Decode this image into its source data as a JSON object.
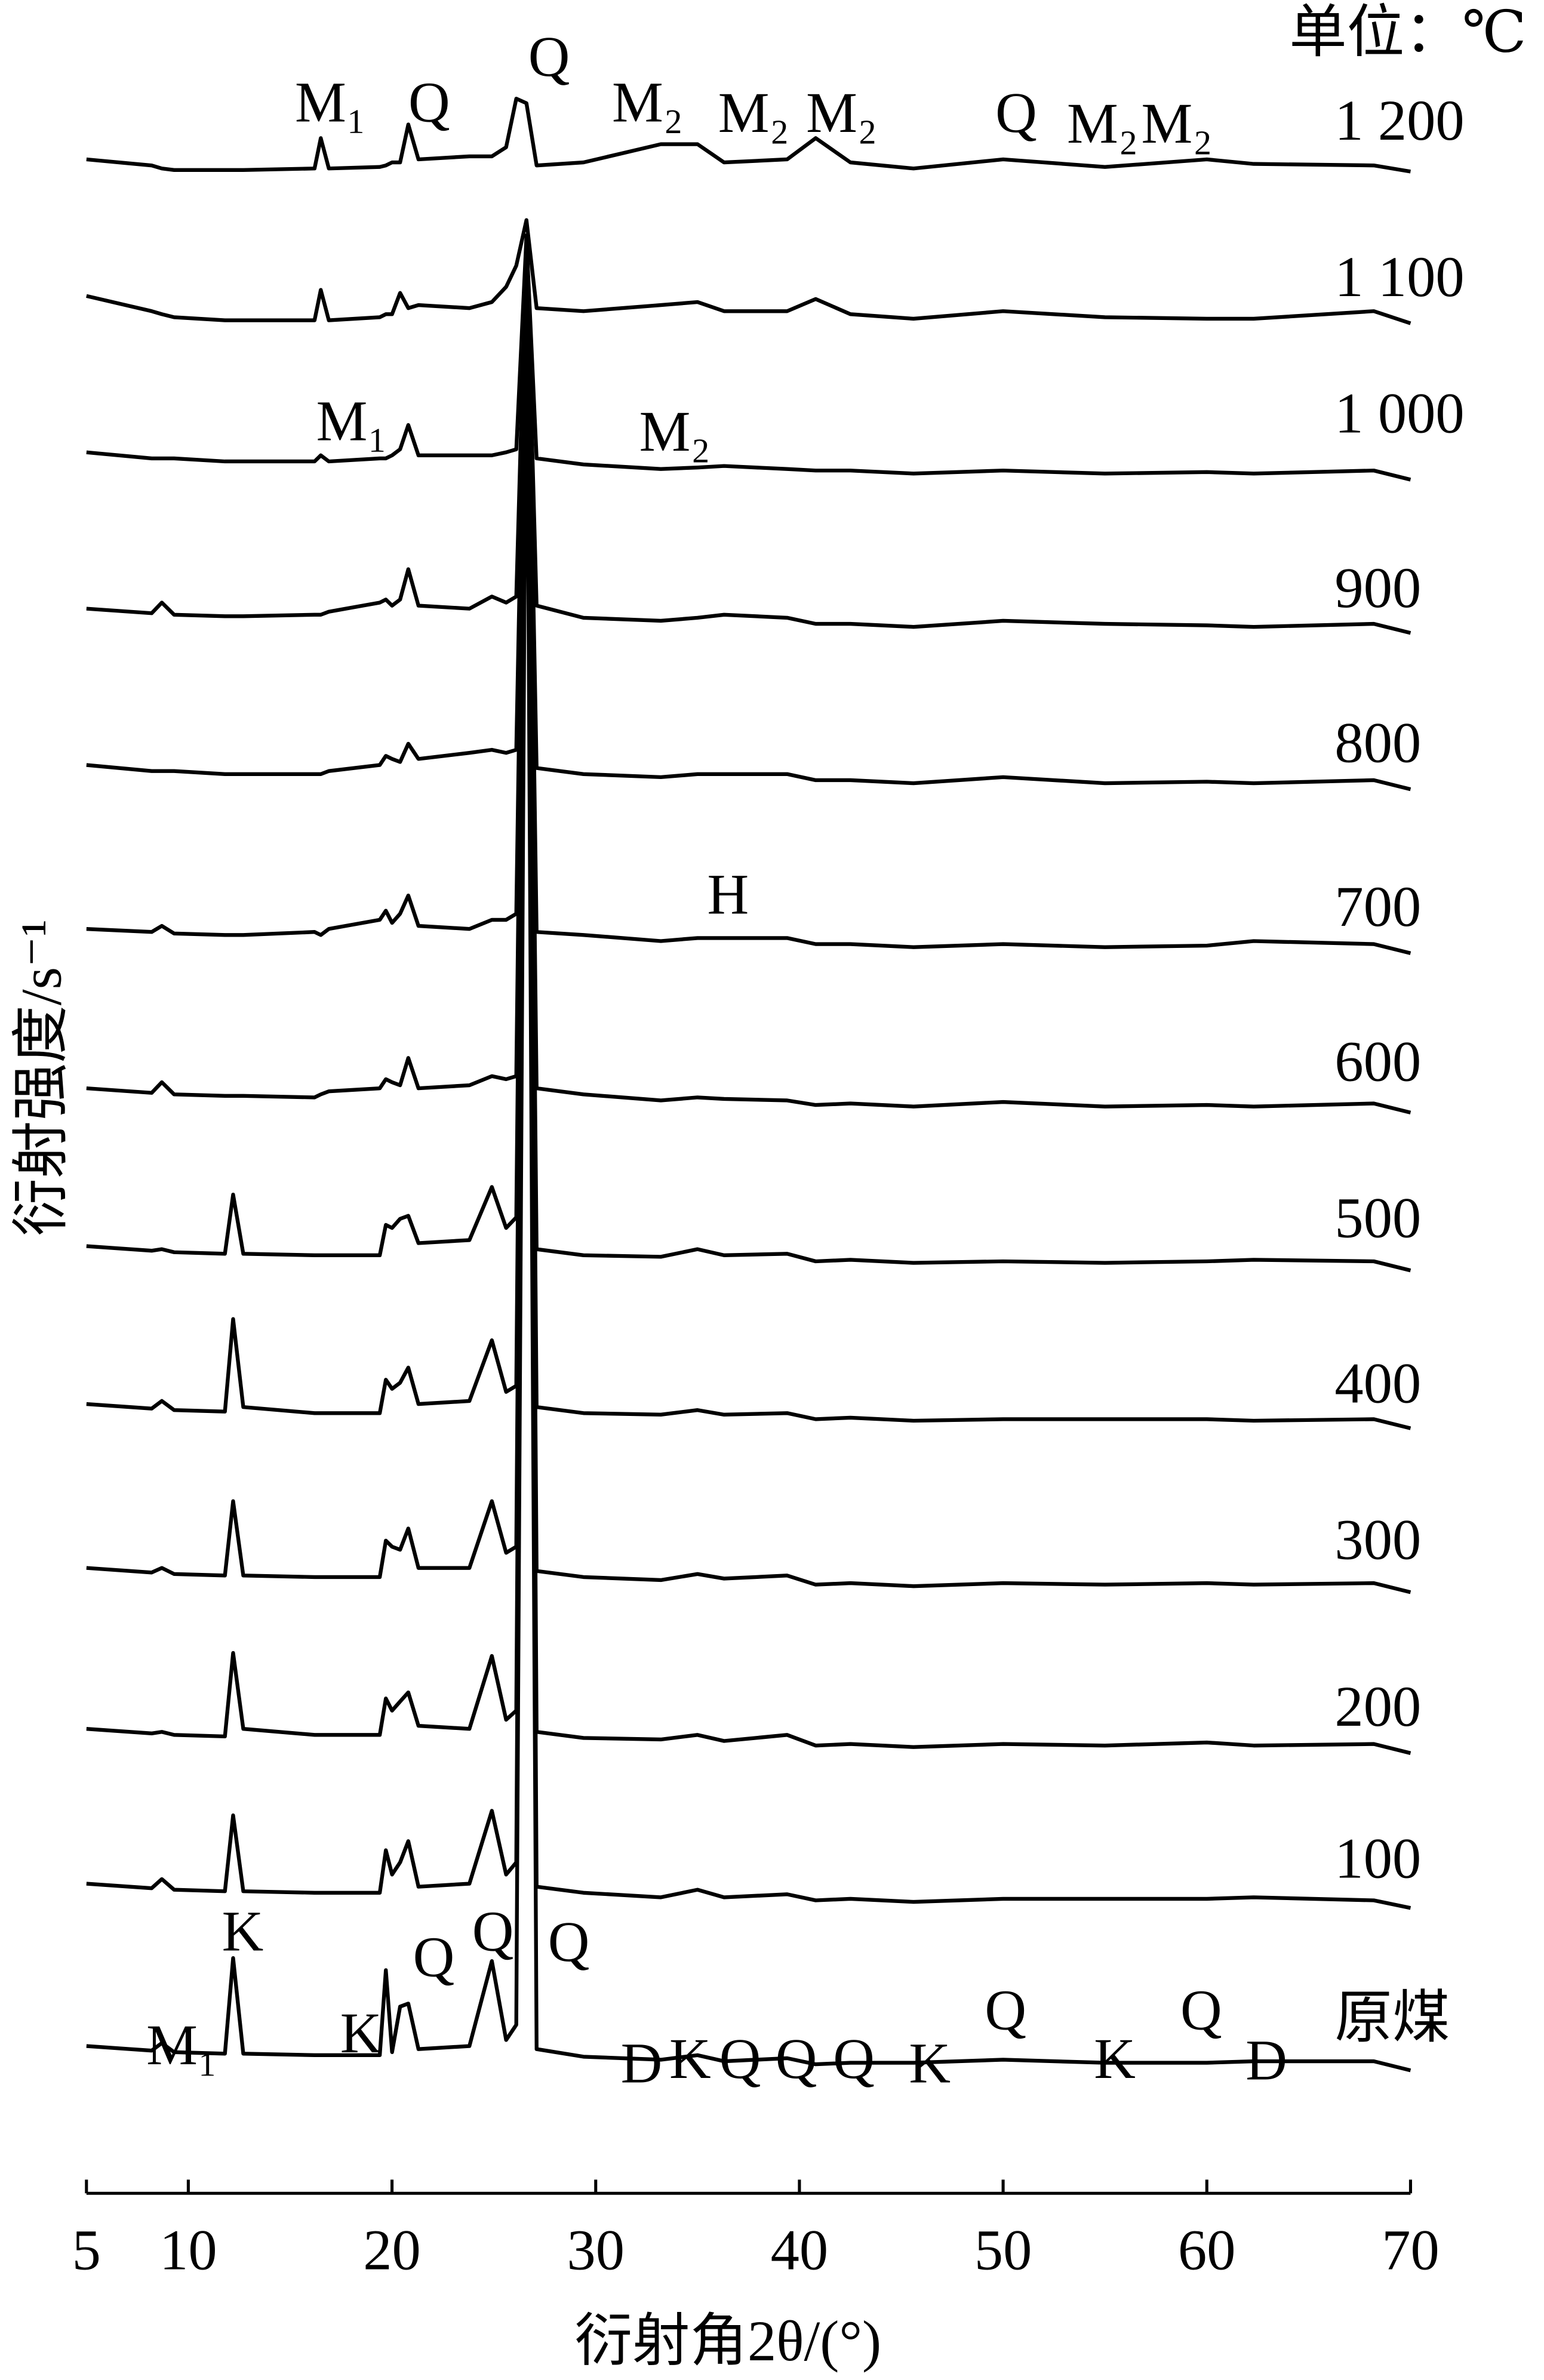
{
  "chart_data": {
    "type": "line",
    "unit_note": "单位：℃",
    "xlabel": "衍射角2θ/(°)",
    "ylabel": "衍射强度/s⁻¹",
    "color": "#000000",
    "xlim": [
      5,
      70
    ],
    "xticks": [
      5,
      10,
      20,
      30,
      40,
      50,
      60,
      70
    ],
    "x": [
      5,
      8.2,
      8.7,
      9.3,
      11.8,
      12.2,
      12.7,
      16.2,
      16.5,
      16.9,
      19.4,
      19.7,
      20.0,
      20.4,
      20.8,
      21.3,
      23.8,
      24.9,
      25.6,
      26.1,
      26.6,
      27.1,
      29.4,
      33.2,
      35.0,
      36.3,
      39.4,
      40.8,
      42.5,
      45.6,
      50.0,
      55.0,
      60.0,
      62.3,
      68.2,
      70
    ],
    "series": [
      {
        "name": "1 200",
        "values": [
          8,
          4,
          2,
          1,
          1,
          1,
          1,
          2,
          22,
          2,
          3,
          4,
          6,
          6,
          31,
          8,
          10,
          10,
          16,
          48,
          45,
          4,
          6,
          18,
          18,
          6,
          8,
          22,
          6,
          2,
          8,
          3,
          8,
          5,
          4,
          0
        ]
      },
      {
        "name": "1 100",
        "values": [
          18,
          8,
          6,
          4,
          2,
          2,
          2,
          2,
          22,
          2,
          4,
          6,
          6,
          20,
          10,
          12,
          10,
          14,
          24,
          38,
          68,
          10,
          8,
          12,
          14,
          8,
          8,
          16,
          6,
          3,
          8,
          4,
          3,
          3,
          8,
          0
        ]
      },
      {
        "name": "1 000",
        "values": [
          18,
          14,
          14,
          14,
          12,
          12,
          12,
          12,
          16,
          12,
          14,
          14,
          16,
          20,
          36,
          16,
          16,
          16,
          18,
          20,
          160,
          14,
          10,
          7,
          8,
          9,
          7,
          6,
          6,
          4,
          6,
          4,
          5,
          4,
          6,
          0
        ]
      },
      {
        "name": "900",
        "values": [
          16,
          13,
          20,
          12,
          11,
          11,
          11,
          12,
          12,
          14,
          20,
          22,
          18,
          22,
          42,
          18,
          16,
          24,
          20,
          24,
          260,
          18,
          10,
          8,
          10,
          12,
          10,
          6,
          6,
          4,
          8,
          6,
          5,
          4,
          6,
          0
        ]
      },
      {
        "name": "800",
        "values": [
          16,
          12,
          12,
          12,
          10,
          10,
          10,
          10,
          10,
          12,
          16,
          22,
          20,
          18,
          30,
          20,
          24,
          26,
          24,
          26,
          365,
          14,
          10,
          8,
          10,
          10,
          10,
          6,
          6,
          4,
          8,
          4,
          5,
          4,
          6,
          0
        ]
      },
      {
        "name": "700",
        "values": [
          16,
          14,
          18,
          13,
          12,
          12,
          12,
          14,
          12,
          16,
          22,
          28,
          20,
          26,
          38,
          18,
          16,
          22,
          22,
          26,
          470,
          14,
          12,
          8,
          10,
          10,
          10,
          6,
          6,
          4,
          6,
          4,
          5,
          8,
          6,
          0
        ]
      },
      {
        "name": "600",
        "values": [
          16,
          13,
          20,
          12,
          11,
          11,
          11,
          10,
          12,
          14,
          16,
          22,
          20,
          18,
          36,
          16,
          18,
          24,
          22,
          24,
          575,
          16,
          12,
          8,
          10,
          9,
          8,
          5,
          6,
          4,
          7,
          4,
          5,
          4,
          6,
          0
        ]
      },
      {
        "name": "500",
        "values": [
          16,
          13,
          14,
          12,
          11,
          50,
          11,
          10,
          10,
          10,
          10,
          30,
          28,
          34,
          36,
          18,
          20,
          55,
          28,
          35,
          680,
          14,
          10,
          9,
          14,
          10,
          11,
          6,
          7,
          5,
          6,
          5,
          6,
          7,
          6,
          0
        ]
      },
      {
        "name": "400",
        "values": [
          16,
          13,
          18,
          12,
          11,
          72,
          14,
          10,
          10,
          10,
          10,
          32,
          26,
          30,
          40,
          16,
          18,
          58,
          24,
          28,
          785,
          14,
          10,
          9,
          12,
          9,
          10,
          6,
          7,
          5,
          6,
          6,
          6,
          5,
          6,
          0
        ]
      },
      {
        "name": "300",
        "values": [
          16,
          13,
          16,
          12,
          11,
          60,
          11,
          10,
          10,
          10,
          10,
          34,
          30,
          28,
          42,
          16,
          16,
          60,
          26,
          30,
          890,
          14,
          10,
          8,
          12,
          9,
          11,
          5,
          6,
          4,
          6,
          5,
          6,
          5,
          6,
          0
        ]
      },
      {
        "name": "200",
        "values": [
          16,
          13,
          14,
          12,
          11,
          66,
          16,
          12,
          12,
          12,
          12,
          36,
          28,
          34,
          40,
          18,
          16,
          64,
          22,
          28,
          995,
          14,
          10,
          9,
          12,
          8,
          12,
          5,
          6,
          4,
          6,
          5,
          7,
          5,
          6,
          0
        ]
      },
      {
        "name": "100",
        "values": [
          16,
          13,
          19,
          12,
          11,
          61,
          11,
          10,
          10,
          10,
          10,
          38,
          22,
          30,
          44,
          14,
          16,
          64,
          22,
          30,
          1100,
          14,
          10,
          7,
          12,
          7,
          9,
          5,
          6,
          4,
          6,
          6,
          6,
          7,
          5,
          0
        ]
      },
      {
        "name": "原煤",
        "values": [
          16,
          13,
          18,
          12,
          11,
          74,
          11,
          10,
          10,
          10,
          10,
          66,
          12,
          42,
          44,
          14,
          16,
          72,
          20,
          30,
          1205,
          14,
          9,
          7,
          10,
          6,
          8,
          4,
          5,
          5,
          7,
          5,
          5,
          6,
          6,
          0
        ]
      }
    ],
    "annotations": [
      "M₁",
      "Q",
      "Q",
      "M₂",
      "M₂",
      "M₂",
      "Q",
      "M₂",
      "M₂",
      "M₁",
      "M₂",
      "H",
      "M₁",
      "K",
      "K",
      "Q",
      "Q",
      "Q",
      "D",
      "K",
      "Q",
      "Q",
      "Q",
      "K",
      "Q",
      "K",
      "Q",
      "D"
    ]
  }
}
